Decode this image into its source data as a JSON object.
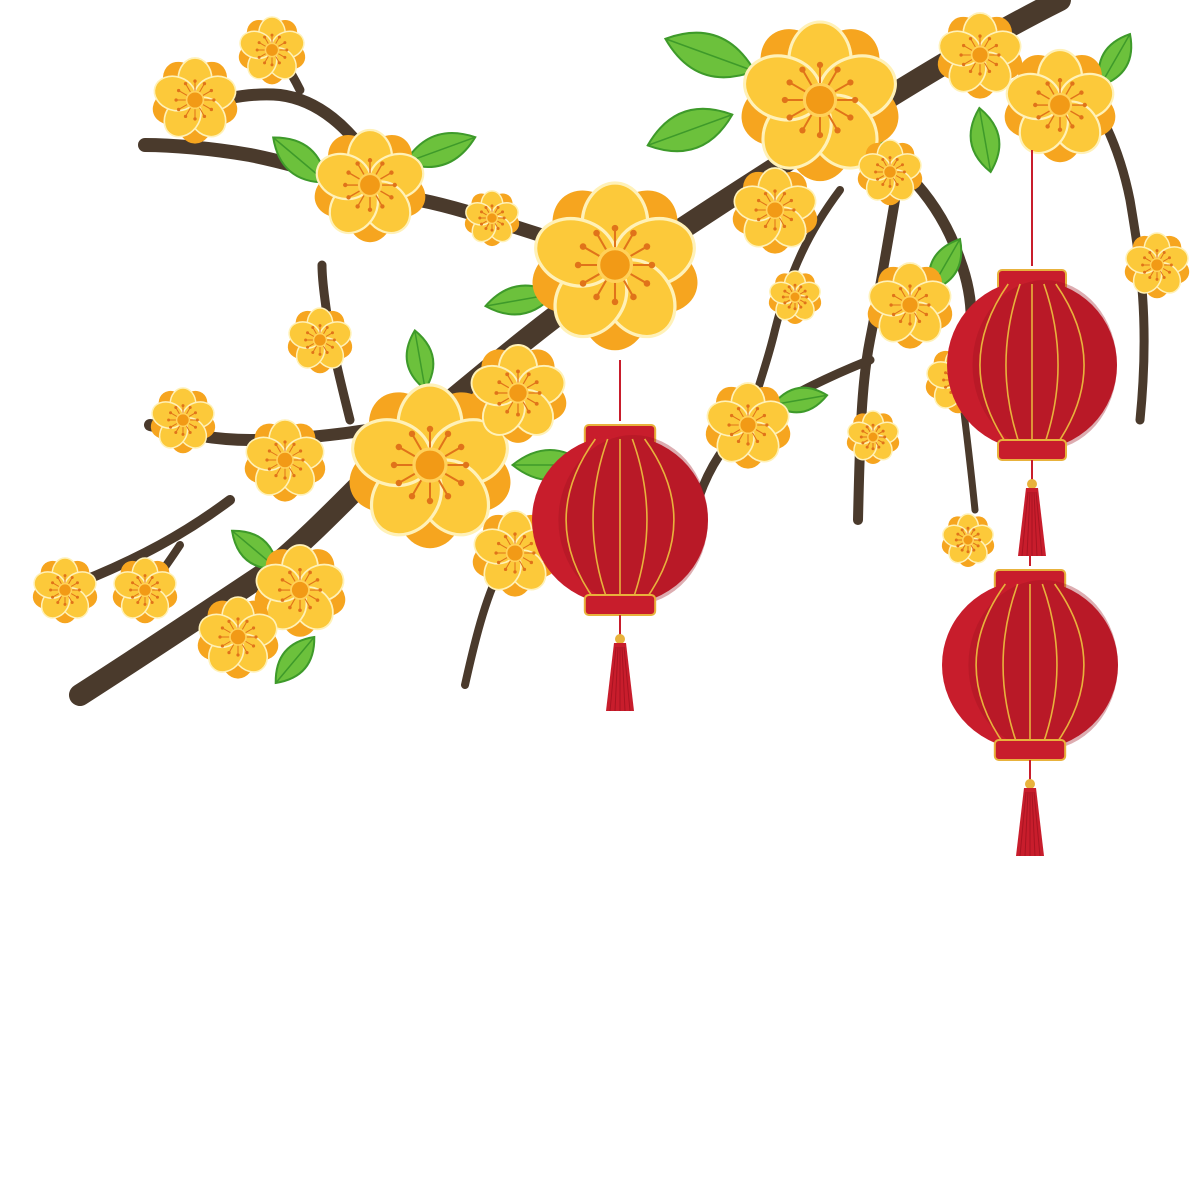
{
  "illustration": {
    "subject": "blossom-branch-with-lanterns",
    "colors": {
      "background": "#ffffff",
      "branch": "#4a3a2c",
      "branch_highlight": "#6b5744",
      "petal": "#fcc93a",
      "petal_back": "#f6a51f",
      "petal_edge": "#fff1b8",
      "flower_center": "#f29a16",
      "stamen": "#e0731a",
      "leaf": "#6cc13c",
      "leaf_dark": "#3e9a2a",
      "lantern_red": "#c81d2c",
      "lantern_dark": "#9e1420",
      "lantern_gold": "#e8b23c",
      "tassel": "#c81d2c"
    },
    "icons": [
      "blossom-icon",
      "leaf-icon",
      "lantern-icon",
      "tassel-icon"
    ]
  }
}
